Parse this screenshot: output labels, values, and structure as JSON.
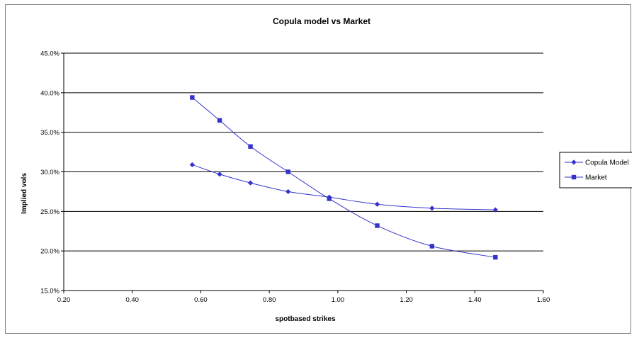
{
  "chart_data": {
    "type": "line",
    "title": "Copula model vs Market",
    "xlabel": "spotbased strikes",
    "ylabel": "Implied vols",
    "xlim": [
      0.2,
      1.6
    ],
    "ylim": [
      0.15,
      0.45
    ],
    "x_ticks": [
      "0.20",
      "0.40",
      "0.60",
      "0.80",
      "1.00",
      "1.20",
      "1.40",
      "1.60"
    ],
    "y_ticks": [
      "15.0%",
      "20.0%",
      "25.0%",
      "30.0%",
      "35.0%",
      "40.0%",
      "45.0%"
    ],
    "grid": "horizontal",
    "legend_position": "right",
    "series": [
      {
        "name": "Copula Model",
        "marker": "diamond",
        "color": "#3333cc",
        "x": [
          0.575,
          0.655,
          0.745,
          0.855,
          0.975,
          1.115,
          1.275,
          1.46
        ],
        "y": [
          0.309,
          0.297,
          0.286,
          0.275,
          0.268,
          0.259,
          0.254,
          0.252
        ]
      },
      {
        "name": "Market",
        "marker": "square",
        "color": "#3333cc",
        "x": [
          0.575,
          0.655,
          0.745,
          0.855,
          0.975,
          1.115,
          1.275,
          1.46
        ],
        "y": [
          0.394,
          0.365,
          0.332,
          0.3,
          0.266,
          0.232,
          0.206,
          0.192
        ]
      }
    ]
  }
}
